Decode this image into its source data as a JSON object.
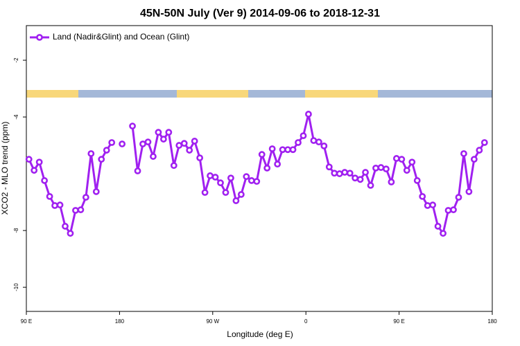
{
  "chart_data": {
    "type": "line",
    "title": "45N-50N July (Ver 9)   2014-09-06 to 2018-12-31",
    "x_label": "Longitude (deg E)",
    "y_label": "XCO2 - MLO trend (ppm)",
    "legend": "top-left",
    "x": [
      92.5,
      97.5,
      102.5,
      107.5,
      112.5,
      117.5,
      122.5,
      127.5,
      132.5,
      137.5,
      142.5,
      147.5,
      152.5,
      157.5,
      162.5,
      167.5,
      172.5,
      177.5,
      182.5,
      187.5,
      192.5,
      197.5,
      202.5,
      207.5,
      212.5,
      217.5,
      222.5,
      227.5,
      232.5,
      237.5,
      242.5,
      247.5,
      252.5,
      257.5,
      262.5,
      267.5,
      272.5,
      277.5,
      282.5,
      287.5,
      292.5,
      297.5,
      302.5,
      307.5,
      312.5,
      317.5,
      322.5,
      327.5,
      332.5,
      337.5,
      342.5,
      347.5,
      352.5,
      357.5,
      362.5,
      367.5,
      372.5,
      377.5,
      382.5,
      387.5,
      392.5,
      397.5,
      402.5,
      407.5,
      412.5,
      417.5,
      422.5,
      427.5,
      432.5,
      437.5,
      442.5,
      447.5,
      452.5,
      457.5,
      462.5,
      467.5,
      472.5,
      477.5,
      482.5,
      487.5,
      492.5,
      497.5,
      502.5,
      507.5,
      512.5,
      517.5,
      522.5,
      527.5,
      532.5
    ],
    "series": [
      {
        "name": "Land (Nadir&Glint) and Ocean (Glint)",
        "color": "#a020f0",
        "values": [
          -5.49,
          -5.88,
          -5.59,
          -6.24,
          -6.8,
          -7.12,
          -7.1,
          -7.85,
          -8.1,
          -7.29,
          -7.27,
          -6.83,
          -5.29,
          -6.63,
          -5.49,
          -5.17,
          -4.9,
          null,
          -4.95,
          null,
          -4.32,
          -5.9,
          -4.95,
          -4.88,
          -5.39,
          -4.54,
          -4.78,
          -4.54,
          -5.71,
          -5.0,
          -4.93,
          -5.17,
          -4.85,
          -5.44,
          -6.66,
          -6.07,
          -6.12,
          -6.32,
          -6.66,
          -6.15,
          -6.95,
          -6.73,
          -6.1,
          -6.24,
          -6.27,
          -5.32,
          -5.8,
          -5.12,
          -5.66,
          -5.15,
          -5.15,
          -5.15,
          -4.9,
          -4.66,
          -3.9,
          -4.83,
          -4.88,
          -5.02,
          -5.76,
          -5.98,
          -6.0,
          -5.95,
          -5.98,
          -6.15,
          -6.2,
          -5.95,
          -6.41,
          -5.8,
          -5.78,
          -5.83,
          -6.29,
          -5.46,
          -5.49,
          -5.88,
          -5.59,
          -6.24,
          -6.8,
          -7.12,
          -7.1,
          -7.85,
          -8.1,
          -7.29,
          -7.27,
          -6.83,
          -5.29,
          -6.63,
          -5.49,
          -5.17,
          -4.9
        ]
      }
    ],
    "xlim": [
      90,
      540
    ],
    "xticks": [
      {
        "value": 90,
        "label": "90 E"
      },
      180,
      {
        "value": 270,
        "label": "90 W"
      },
      {
        "value": 360,
        "label": "0"
      },
      {
        "value": 450,
        "label": "90 E"
      },
      {
        "value": 540,
        "label": "180"
      }
    ],
    "ylim": [
      -10.85,
      -0.78
    ],
    "yticks": [
      -2,
      -4,
      -8,
      -10
    ]
  }
}
